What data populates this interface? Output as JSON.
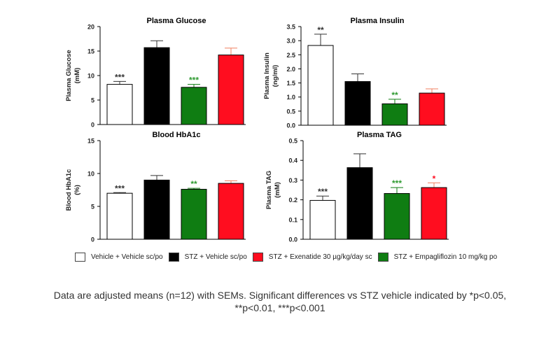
{
  "legend": [
    {
      "label": "Vehicle + Vehicle sc/po",
      "color": "#ffffff"
    },
    {
      "label": "STZ + Vehicle sc/po",
      "color": "#000000"
    },
    {
      "label": "STZ + Exenatide 30 µg/kg/day sc",
      "color": "#ff0d1f"
    },
    {
      "label": "STZ + Empagliflozin 10 mg/kg po",
      "color": "#0f7d12"
    }
  ],
  "caption": {
    "line1": "Data are adjusted means (n=12) with SEMs. Significant differences vs STZ vehicle indicated by *p<0.05,",
    "line2": "**p<0.01, ***p<0.001"
  },
  "chart_data": [
    {
      "type": "bar",
      "title": "Plasma Glucose",
      "ylabel": "Plasma Glucose",
      "yunit": "(mM)",
      "ylim": [
        0,
        20
      ],
      "yticks": [
        "0",
        "5",
        "10",
        "15",
        "20"
      ],
      "tick_values": [
        0,
        5,
        10,
        15,
        20
      ],
      "groups": [
        "Vehicle + Vehicle sc/po",
        "STZ + Vehicle sc/po",
        "STZ + Empagliflozin 10 mg/kg po",
        "STZ + Exenatide 30 µg/kg/day sc"
      ],
      "colors": [
        "#ffffff",
        "#000000",
        "#0f7d12",
        "#ff0d1f"
      ],
      "values": [
        8.2,
        15.7,
        7.6,
        14.2
      ],
      "sem": [
        0.6,
        1.4,
        0.6,
        1.4
      ],
      "significance": [
        "***",
        "",
        "***",
        ""
      ]
    },
    {
      "type": "bar",
      "title": "Plasma Insulin",
      "ylabel": "Plasma Insulin",
      "yunit": "(ng/ml)",
      "ylim": [
        0,
        3.5
      ],
      "yticks": [
        "0.0",
        "0.5",
        "1.0",
        "1.5",
        "2.0",
        "2.5",
        "3.0",
        "3.5"
      ],
      "tick_values": [
        0,
        0.5,
        1,
        1.5,
        2,
        2.5,
        3,
        3.5
      ],
      "groups": [
        "Vehicle + Vehicle sc/po",
        "STZ + Vehicle sc/po",
        "STZ + Empagliflozin 10 mg/kg po",
        "STZ + Exenatide 30 µg/kg/day sc"
      ],
      "colors": [
        "#ffffff",
        "#000000",
        "#0f7d12",
        "#ff0d1f"
      ],
      "values": [
        2.83,
        1.55,
        0.76,
        1.14
      ],
      "sem": [
        0.4,
        0.27,
        0.16,
        0.15
      ],
      "significance": [
        "**",
        "",
        "**",
        ""
      ]
    },
    {
      "type": "bar",
      "title": "Blood HbA1c",
      "ylabel": "Blood HbA1c",
      "yunit": "(%)",
      "ylim": [
        0,
        15
      ],
      "yticks": [
        "0",
        "5",
        "10",
        "15"
      ],
      "tick_values": [
        0,
        5,
        10,
        15
      ],
      "groups": [
        "Vehicle + Vehicle sc/po",
        "STZ + Vehicle sc/po",
        "STZ + Empagliflozin 10 mg/kg po",
        "STZ + Exenatide 30 µg/kg/day sc"
      ],
      "colors": [
        "#ffffff",
        "#000000",
        "#0f7d12",
        "#ff0d1f"
      ],
      "values": [
        7.0,
        9.0,
        7.6,
        8.5
      ],
      "sem": [
        0.1,
        0.7,
        0.15,
        0.4
      ],
      "significance": [
        "***",
        "",
        "**",
        ""
      ]
    },
    {
      "type": "bar",
      "title": "Plasma TAG",
      "ylabel": "Plasma TAG",
      "yunit": "(mM)",
      "ylim": [
        0,
        0.5
      ],
      "yticks": [
        "0.0",
        "0.1",
        "0.2",
        "0.3",
        "0.4",
        "0.5"
      ],
      "tick_values": [
        0,
        0.1,
        0.2,
        0.3,
        0.4,
        0.5
      ],
      "groups": [
        "Vehicle + Vehicle sc/po",
        "STZ + Vehicle sc/po",
        "STZ + Empagliflozin 10 mg/kg po",
        "STZ + Exenatide 30 µg/kg/day sc"
      ],
      "colors": [
        "#ffffff",
        "#000000",
        "#0f7d12",
        "#ff0d1f"
      ],
      "values": [
        0.197,
        0.363,
        0.232,
        0.262
      ],
      "sem": [
        0.022,
        0.07,
        0.03,
        0.024
      ],
      "significance": [
        "***",
        "",
        "***",
        "*"
      ]
    }
  ]
}
